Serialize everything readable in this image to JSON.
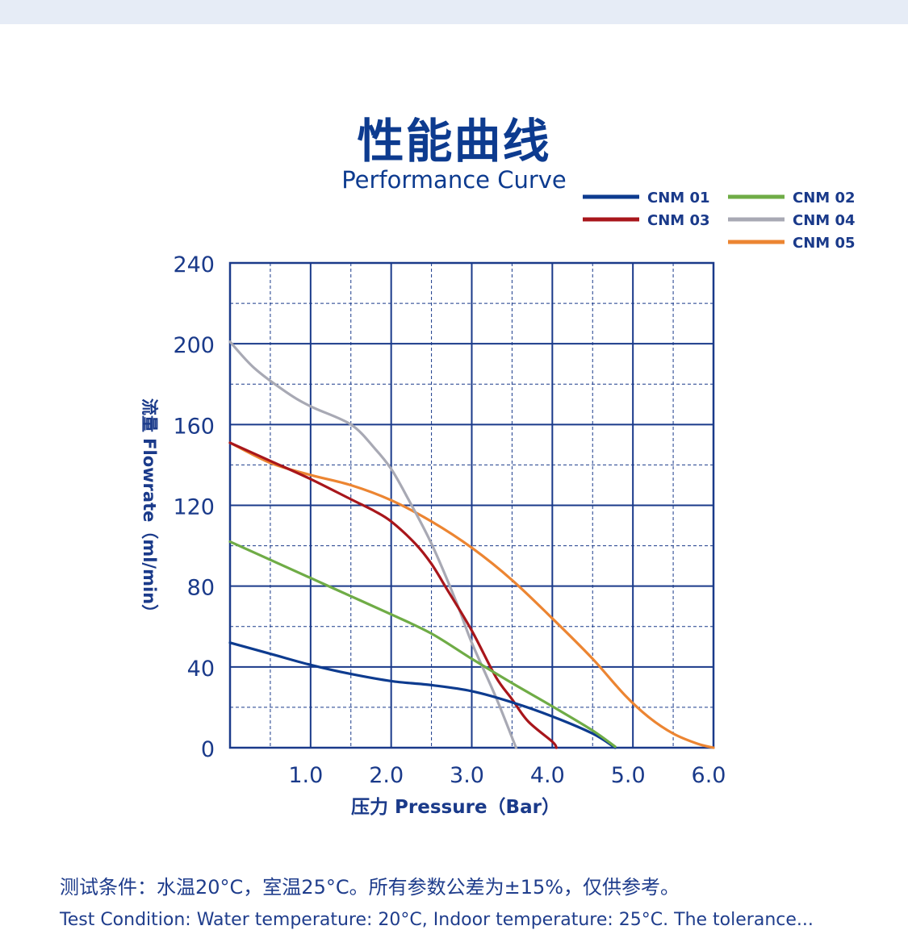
{
  "colors": {
    "navy": "#1a3a8a",
    "grid": "#1a3a8a",
    "background_bar": "#e6ecf6"
  },
  "header": {
    "title_cn": "性能曲线",
    "title_en": "Performance Curve"
  },
  "chart_data": {
    "type": "line",
    "title": "性能曲线",
    "subtitle": "Performance Curve",
    "xlabel": "压力 Pressure（Bar）",
    "ylabel": "流量 Flowrate（ml/min）",
    "xlim": [
      0,
      6.0
    ],
    "ylim": [
      0,
      240
    ],
    "x_ticks": [
      1.0,
      2.0,
      3.0,
      4.0,
      5.0,
      6.0
    ],
    "x_tick_labels": [
      "1.0",
      "2.0",
      "3.0",
      "4.0",
      "5.0",
      "6.0"
    ],
    "y_ticks": [
      0,
      40,
      80,
      120,
      160,
      200,
      240
    ],
    "y_tick_labels": [
      "0",
      "40",
      "80",
      "120",
      "160",
      "200",
      "240"
    ],
    "grid": true,
    "legend_position": "top-right",
    "series": [
      {
        "name": "CNM 01",
        "color": "#0d3b8f",
        "x": [
          0,
          0.5,
          1.0,
          1.5,
          2.0,
          2.5,
          3.0,
          3.5,
          4.0,
          4.5,
          4.78
        ],
        "y": [
          52,
          46.5,
          41,
          36.5,
          33,
          31,
          28,
          22.5,
          15.5,
          7,
          0
        ]
      },
      {
        "name": "CNM 02",
        "color": "#6fac46",
        "x": [
          0,
          0.5,
          1.0,
          1.5,
          2.0,
          2.5,
          3.0,
          3.5,
          4.0,
          4.5,
          4.78
        ],
        "y": [
          102,
          93,
          84,
          75,
          66,
          56.5,
          44,
          32,
          20.5,
          8.5,
          0.5
        ]
      },
      {
        "name": "CNM 03",
        "color": "#a8161b",
        "x": [
          0,
          0.5,
          1.0,
          1.5,
          1.8,
          2.0,
          2.3,
          2.5,
          2.7,
          3.0,
          3.3,
          3.5,
          3.7,
          4.0,
          4.05
        ],
        "y": [
          151,
          142,
          133,
          123,
          117,
          112,
          101,
          91,
          78,
          58,
          35,
          24,
          13,
          3,
          0
        ]
      },
      {
        "name": "CNM 04",
        "color": "#a8a9b4",
        "x": [
          0,
          0.3,
          0.7,
          1.0,
          1.5,
          1.8,
          2.0,
          2.2,
          2.5,
          2.8,
          3.0,
          3.3,
          3.55
        ],
        "y": [
          201,
          188,
          176,
          169,
          160,
          148,
          138,
          124,
          101,
          73,
          52,
          25,
          0
        ]
      },
      {
        "name": "CNM 05",
        "color": "#ec8532",
        "x": [
          0,
          0.5,
          1.0,
          1.5,
          2.0,
          2.5,
          3.0,
          3.5,
          4.0,
          4.5,
          4.9,
          5.2,
          5.5,
          5.8,
          6.0
        ],
        "y": [
          151,
          141,
          135,
          130,
          122.5,
          112,
          99,
          83,
          64,
          44,
          26,
          15,
          7,
          2,
          0
        ]
      }
    ]
  },
  "notes": {
    "cn": "测试条件：水温20°C，室温25°C。所有参数公差为±15%，仅供参考。",
    "en": "Test Condition: Water temperature: 20°C, Indoor temperature: 25°C. The tolerance..."
  }
}
